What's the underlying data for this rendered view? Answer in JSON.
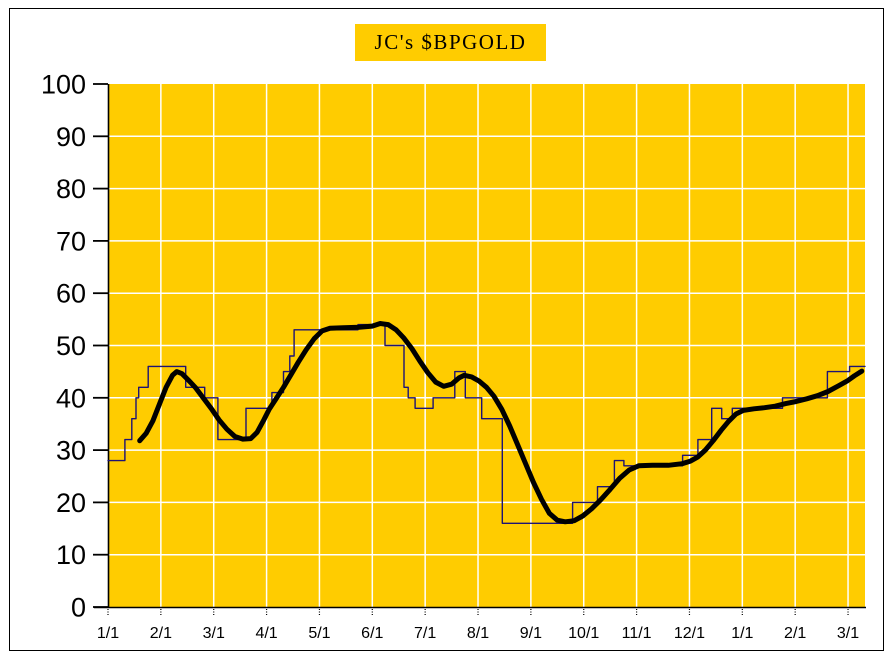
{
  "window": {
    "frame_border_color": "#000000",
    "page_background": "#FFFFFF"
  },
  "chart_data": {
    "type": "line",
    "title": "JC's $BPGOLD",
    "subtitle": "",
    "legend": "none",
    "grid": true,
    "x_axis": {
      "labels": [
        "1/1",
        "2/1",
        "3/1",
        "4/1",
        "5/1",
        "6/1",
        "7/1",
        "8/1",
        "9/1",
        "10/1",
        "11/1",
        "12/1",
        "1/1",
        "2/1",
        "3/1"
      ],
      "tick_positions_months": [
        0,
        1,
        2,
        3,
        4,
        5,
        6,
        7,
        8,
        9,
        10,
        11,
        12,
        13,
        14
      ],
      "range_months": [
        0,
        14.32
      ]
    },
    "y_axis": {
      "ticks": [
        0,
        10,
        20,
        30,
        40,
        50,
        60,
        70,
        80,
        90,
        100
      ],
      "range": [
        0,
        100
      ]
    },
    "colors": {
      "plot_background": "#FFCC00",
      "title_background": "#FFCC00",
      "gridline": "#FFFFFF",
      "axis": "#000000",
      "tick_label": "#000000",
      "step_line": "#1D1275",
      "smooth_line": "#000000"
    },
    "series": [
      {
        "name": "bp-index-daily-step",
        "style": "step",
        "stroke_width": 1.4,
        "points": [
          [
            0.0,
            28
          ],
          [
            0.32,
            32
          ],
          [
            0.45,
            36
          ],
          [
            0.53,
            40
          ],
          [
            0.58,
            42
          ],
          [
            0.76,
            46
          ],
          [
            1.47,
            42
          ],
          [
            1.83,
            40
          ],
          [
            2.08,
            32
          ],
          [
            2.61,
            38
          ],
          [
            3.1,
            41
          ],
          [
            3.32,
            45
          ],
          [
            3.44,
            48
          ],
          [
            3.52,
            53
          ],
          [
            4.73,
            54
          ],
          [
            5.24,
            50
          ],
          [
            5.6,
            42
          ],
          [
            5.68,
            40
          ],
          [
            5.81,
            38
          ],
          [
            6.15,
            40
          ],
          [
            6.56,
            45
          ],
          [
            6.76,
            40
          ],
          [
            7.07,
            36
          ],
          [
            7.46,
            16
          ],
          [
            8.79,
            20
          ],
          [
            9.26,
            23
          ],
          [
            9.58,
            28
          ],
          [
            9.76,
            27
          ],
          [
            10.87,
            29
          ],
          [
            11.16,
            32
          ],
          [
            11.42,
            38
          ],
          [
            11.61,
            36
          ],
          [
            11.81,
            38
          ],
          [
            12.76,
            40
          ],
          [
            13.61,
            45
          ],
          [
            14.03,
            46
          ]
        ]
      },
      {
        "name": "bp-index-smoothed",
        "style": "line",
        "stroke_width": 5,
        "points": [
          [
            0.6,
            31.8
          ],
          [
            0.72,
            33.2
          ],
          [
            0.85,
            35.6
          ],
          [
            1.0,
            39.5
          ],
          [
            1.1,
            42.0
          ],
          [
            1.22,
            44.3
          ],
          [
            1.3,
            45.0
          ],
          [
            1.4,
            44.6
          ],
          [
            1.52,
            43.4
          ],
          [
            1.65,
            42.0
          ],
          [
            1.8,
            40.0
          ],
          [
            1.95,
            38.0
          ],
          [
            2.1,
            35.8
          ],
          [
            2.25,
            34.0
          ],
          [
            2.4,
            32.6
          ],
          [
            2.55,
            32.1
          ],
          [
            2.7,
            32.2
          ],
          [
            2.82,
            33.4
          ],
          [
            2.95,
            35.8
          ],
          [
            3.05,
            37.8
          ],
          [
            3.18,
            39.8
          ],
          [
            3.32,
            42.0
          ],
          [
            3.46,
            44.4
          ],
          [
            3.6,
            46.8
          ],
          [
            3.75,
            49.2
          ],
          [
            3.9,
            51.3
          ],
          [
            4.05,
            52.8
          ],
          [
            4.2,
            53.3
          ],
          [
            4.45,
            53.4
          ],
          [
            4.75,
            53.5
          ],
          [
            5.0,
            53.7
          ],
          [
            5.15,
            54.2
          ],
          [
            5.3,
            54.0
          ],
          [
            5.45,
            53.0
          ],
          [
            5.6,
            51.4
          ],
          [
            5.75,
            49.4
          ],
          [
            5.9,
            47.0
          ],
          [
            6.05,
            44.8
          ],
          [
            6.2,
            43.0
          ],
          [
            6.35,
            42.2
          ],
          [
            6.5,
            42.6
          ],
          [
            6.64,
            43.8
          ],
          [
            6.74,
            44.3
          ],
          [
            6.88,
            44.0
          ],
          [
            7.02,
            43.2
          ],
          [
            7.16,
            42.0
          ],
          [
            7.3,
            40.3
          ],
          [
            7.45,
            37.8
          ],
          [
            7.6,
            34.6
          ],
          [
            7.75,
            31.0
          ],
          [
            7.9,
            27.4
          ],
          [
            8.05,
            23.8
          ],
          [
            8.2,
            20.6
          ],
          [
            8.35,
            17.9
          ],
          [
            8.5,
            16.6
          ],
          [
            8.65,
            16.3
          ],
          [
            8.82,
            16.5
          ],
          [
            8.98,
            17.4
          ],
          [
            9.15,
            18.8
          ],
          [
            9.32,
            20.5
          ],
          [
            9.5,
            22.5
          ],
          [
            9.68,
            24.6
          ],
          [
            9.86,
            26.2
          ],
          [
            10.04,
            27.0
          ],
          [
            10.3,
            27.1
          ],
          [
            10.6,
            27.1
          ],
          [
            10.86,
            27.4
          ],
          [
            11.02,
            27.9
          ],
          [
            11.16,
            28.7
          ],
          [
            11.3,
            30.0
          ],
          [
            11.45,
            31.8
          ],
          [
            11.6,
            33.8
          ],
          [
            11.74,
            35.5
          ],
          [
            11.88,
            36.9
          ],
          [
            12.02,
            37.6
          ],
          [
            12.22,
            37.9
          ],
          [
            12.42,
            38.1
          ],
          [
            12.62,
            38.4
          ],
          [
            12.82,
            38.9
          ],
          [
            13.02,
            39.3
          ],
          [
            13.22,
            39.8
          ],
          [
            13.42,
            40.4
          ],
          [
            13.62,
            41.2
          ],
          [
            13.82,
            42.3
          ],
          [
            13.98,
            43.2
          ],
          [
            14.12,
            44.2
          ],
          [
            14.26,
            45.1
          ]
        ]
      }
    ]
  }
}
